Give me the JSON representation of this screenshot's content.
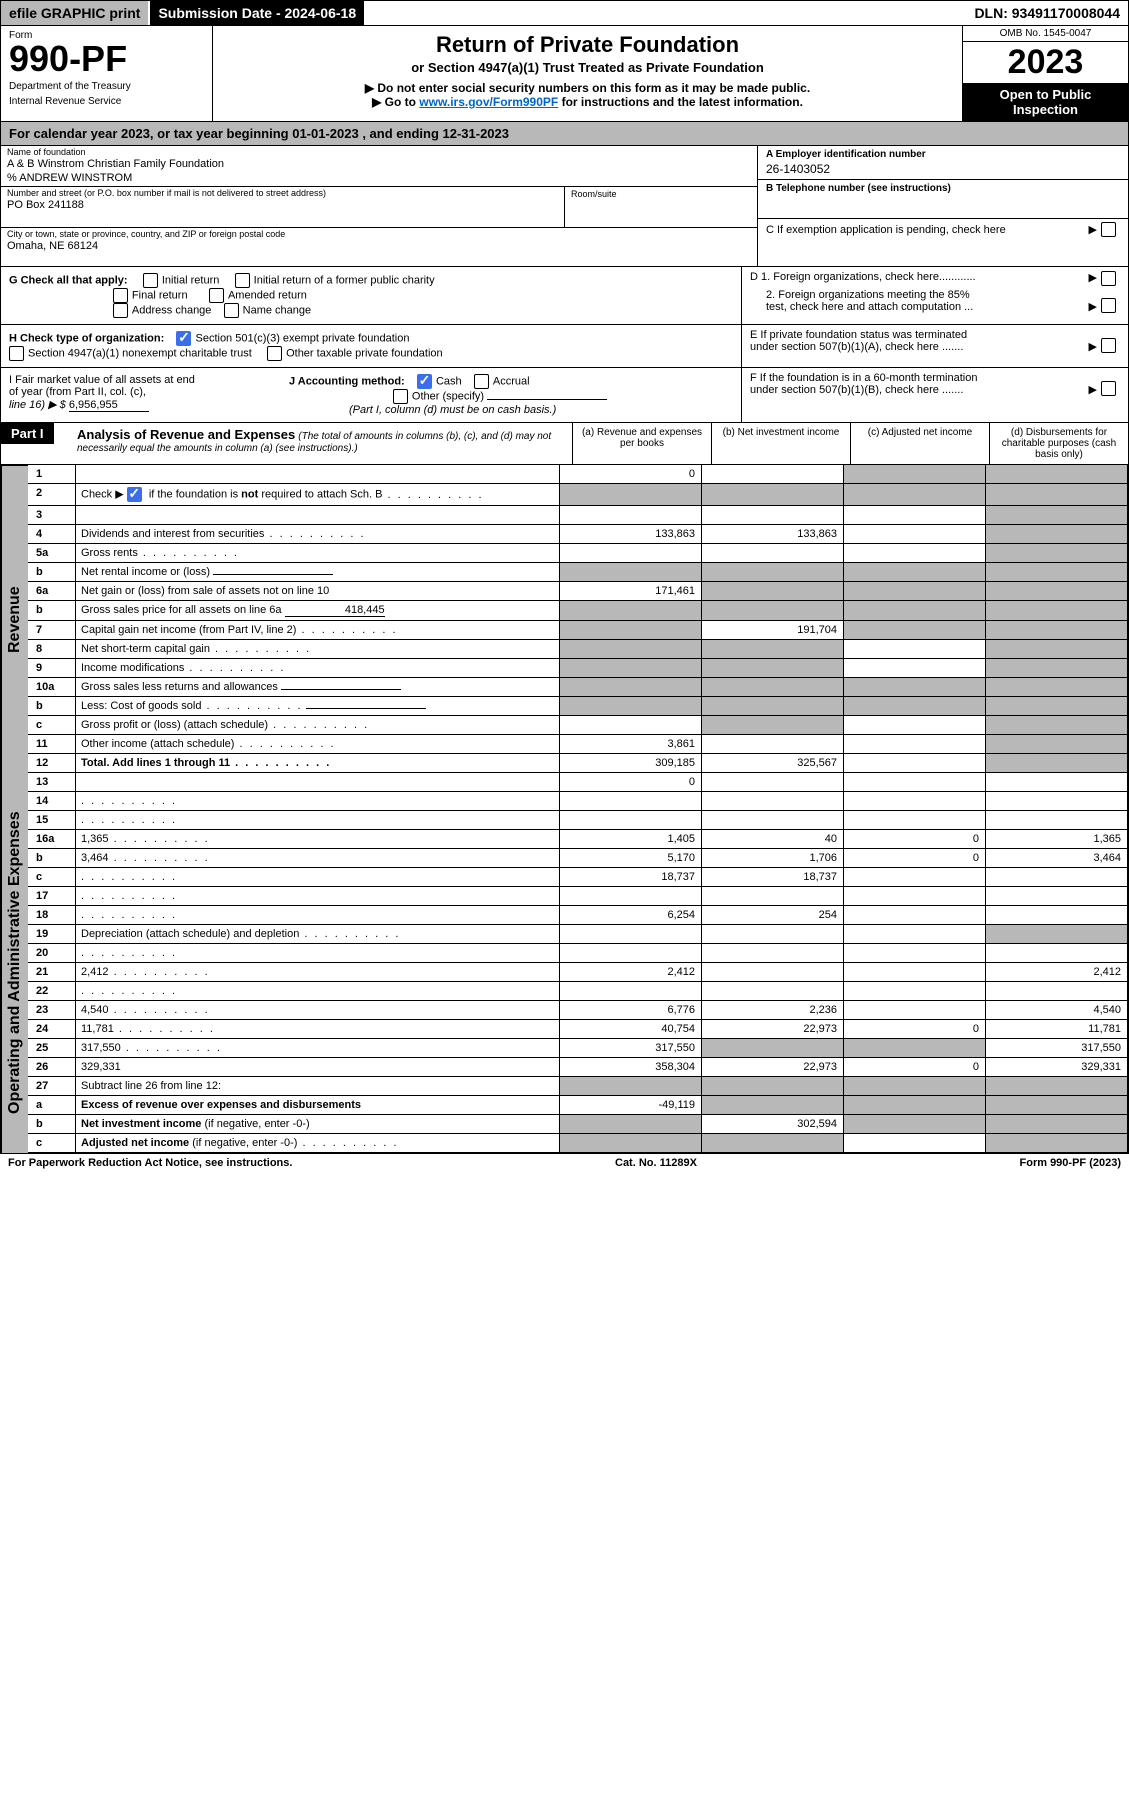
{
  "topbar": {
    "efile": "efile GRAPHIC print",
    "submission": "Submission Date - 2024-06-18",
    "dln": "DLN: 93491170008044"
  },
  "header": {
    "form_label": "Form",
    "form_number": "990-PF",
    "dept1": "Department of the Treasury",
    "dept2": "Internal Revenue Service",
    "title": "Return of Private Foundation",
    "subtitle": "or Section 4947(a)(1) Trust Treated as Private Foundation",
    "note1": "▶ Do not enter social security numbers on this form as it may be made public.",
    "note2_pre": "▶ Go to ",
    "note2_link": "www.irs.gov/Form990PF",
    "note2_post": " for instructions and the latest information.",
    "omb": "OMB No. 1545-0047",
    "year": "2023",
    "open1": "Open to Public",
    "open2": "Inspection"
  },
  "calendar": "For calendar year 2023, or tax year beginning 01-01-2023                        , and ending 12-31-2023",
  "info": {
    "name_label": "Name of foundation",
    "name": "A & B Winstrom Christian Family Foundation",
    "care_of": "% ANDREW WINSTROM",
    "addr_label": "Number and street (or P.O. box number if mail is not delivered to street address)",
    "addr": "PO Box 241188",
    "room_label": "Room/suite",
    "city_label": "City or town, state or province, country, and ZIP or foreign postal code",
    "city": "Omaha, NE  68124",
    "a_label": "A Employer identification number",
    "a_val": "26-1403052",
    "b_label": "B Telephone number (see instructions)",
    "c_label": "C If exemption application is pending, check here",
    "d1": "D 1. Foreign organizations, check here............",
    "d2a": "2. Foreign organizations meeting the 85%",
    "d2b": "test, check here and attach computation ...",
    "e1": "E  If private foundation status was terminated",
    "e2": "under section 507(b)(1)(A), check here .......",
    "f1": "F  If the foundation is in a 60-month termination",
    "f2": "under section 507(b)(1)(B), check here .......",
    "g_label": "G Check all that apply:",
    "g_initial": "Initial return",
    "g_initial_former": "Initial return of a former public charity",
    "g_final": "Final return",
    "g_amended": "Amended return",
    "g_address": "Address change",
    "g_name": "Name change",
    "h_label": "H Check type of organization:",
    "h_501c3": "Section 501(c)(3) exempt private foundation",
    "h_4947": "Section 4947(a)(1) nonexempt charitable trust",
    "h_other": "Other taxable private foundation",
    "i_label": "I Fair market value of all assets at end",
    "i_sub": "of year (from Part II, col. (c),",
    "i_line": "line 16) ▶ $",
    "i_val": "6,956,955",
    "j_label": "J Accounting method:",
    "j_cash": "Cash",
    "j_accrual": "Accrual",
    "j_other": "Other (specify)",
    "j_note": "(Part I, column (d) must be on cash basis.)"
  },
  "part1": {
    "label": "Part I",
    "title": "Analysis of Revenue and Expenses",
    "title_note": " (The total of amounts in columns (b), (c), and (d) may not necessarily equal the amounts in column (a) (see instructions).)",
    "col_a": "(a)   Revenue and expenses per books",
    "col_b": "(b)   Net investment income",
    "col_c": "(c)   Adjusted net income",
    "col_d": "(d)   Disbursements for charitable purposes (cash basis only)"
  },
  "side": {
    "revenue": "Revenue",
    "expenses": "Operating and Administrative Expenses"
  },
  "rows": [
    {
      "n": "1",
      "d": "",
      "a": "0",
      "b": "",
      "c": "",
      "shade_c": true,
      "shade_d": true
    },
    {
      "n": "2",
      "d": "Check ▶ ☑ if the foundation is <b>not</b> required to attach Sch. B",
      "dots": true,
      "shade_a": true,
      "shade_b": true,
      "shade_c": true,
      "shade_d": true,
      "has_check": true
    },
    {
      "n": "3",
      "d": "",
      "a": "",
      "b": "",
      "c": "",
      "shade_d": true
    },
    {
      "n": "4",
      "d": "Dividends and interest from securities",
      "dots": true,
      "a": "133,863",
      "b": "133,863",
      "c": "",
      "shade_d": true
    },
    {
      "n": "5a",
      "d": "Gross rents",
      "dots": true,
      "a": "",
      "b": "",
      "c": "",
      "shade_d": true
    },
    {
      "n": "b",
      "d": "Net rental income or (loss)",
      "inline_box": true,
      "shade_a": true,
      "shade_b": true,
      "shade_c": true,
      "shade_d": true
    },
    {
      "n": "6a",
      "d": "Net gain or (loss) from sale of assets not on line 10",
      "a": "171,461",
      "shade_b": true,
      "shade_c": true,
      "shade_d": true
    },
    {
      "n": "b",
      "d": "Gross sales price for all assets on line 6a",
      "inline_val": "418,445",
      "shade_a": true,
      "shade_b": true,
      "shade_c": true,
      "shade_d": true
    },
    {
      "n": "7",
      "d": "Capital gain net income (from Part IV, line 2)",
      "dots": true,
      "shade_a": true,
      "b": "191,704",
      "shade_c": true,
      "shade_d": true
    },
    {
      "n": "8",
      "d": "Net short-term capital gain",
      "dots": true,
      "shade_a": true,
      "shade_b": true,
      "c": "",
      "shade_d": true
    },
    {
      "n": "9",
      "d": "Income modifications",
      "dots": true,
      "shade_a": true,
      "shade_b": true,
      "c": "",
      "shade_d": true
    },
    {
      "n": "10a",
      "d": "Gross sales less returns and allowances",
      "inline_box": true,
      "shade_a": true,
      "shade_b": true,
      "shade_c": true,
      "shade_d": true
    },
    {
      "n": "b",
      "d": "Less: Cost of goods sold",
      "dots": true,
      "inline_box": true,
      "shade_a": true,
      "shade_b": true,
      "shade_c": true,
      "shade_d": true
    },
    {
      "n": "c",
      "d": "Gross profit or (loss) (attach schedule)",
      "dots": true,
      "a": "",
      "shade_b": true,
      "c": "",
      "shade_d": true
    },
    {
      "n": "11",
      "d": "Other income (attach schedule)",
      "dots": true,
      "a": "3,861",
      "b": "",
      "c": "",
      "shade_d": true
    },
    {
      "n": "12",
      "d": "<b>Total.</b> Add lines 1 through 11",
      "dots": true,
      "a": "309,185",
      "b": "325,567",
      "c": "",
      "shade_d": true,
      "bold": true
    }
  ],
  "exp_rows": [
    {
      "n": "13",
      "d": "",
      "a": "0",
      "b": "",
      "c": ""
    },
    {
      "n": "14",
      "d": "",
      "dots": true,
      "a": "",
      "b": "",
      "c": ""
    },
    {
      "n": "15",
      "d": "",
      "dots": true,
      "a": "",
      "b": "",
      "c": ""
    },
    {
      "n": "16a",
      "d": "1,365",
      "dots": true,
      "a": "1,405",
      "b": "40",
      "c": "0"
    },
    {
      "n": "b",
      "d": "3,464",
      "dots": true,
      "a": "5,170",
      "b": "1,706",
      "c": "0"
    },
    {
      "n": "c",
      "d": "",
      "dots": true,
      "a": "18,737",
      "b": "18,737",
      "c": ""
    },
    {
      "n": "17",
      "d": "",
      "dots": true,
      "a": "",
      "b": "",
      "c": ""
    },
    {
      "n": "18",
      "d": "",
      "dots": true,
      "a": "6,254",
      "b": "254",
      "c": ""
    },
    {
      "n": "19",
      "d": "Depreciation (attach schedule) and depletion",
      "dots": true,
      "a": "",
      "b": "",
      "c": "",
      "shade_d": true
    },
    {
      "n": "20",
      "d": "",
      "dots": true,
      "a": "",
      "b": "",
      "c": ""
    },
    {
      "n": "21",
      "d": "2,412",
      "dots": true,
      "a": "2,412",
      "b": "",
      "c": ""
    },
    {
      "n": "22",
      "d": "",
      "dots": true,
      "a": "",
      "b": "",
      "c": ""
    },
    {
      "n": "23",
      "d": "4,540",
      "dots": true,
      "a": "6,776",
      "b": "2,236",
      "c": ""
    },
    {
      "n": "24",
      "d": "11,781",
      "dots": true,
      "a": "40,754",
      "b": "22,973",
      "c": "0"
    },
    {
      "n": "25",
      "d": "317,550",
      "dots": true,
      "a": "317,550",
      "shade_b": true,
      "shade_c": true
    },
    {
      "n": "26",
      "d": "329,331",
      "a": "358,304",
      "b": "22,973",
      "c": "0"
    },
    {
      "n": "27",
      "d": "Subtract line 26 from line 12:",
      "shade_a": true,
      "shade_b": true,
      "shade_c": true,
      "shade_d": true
    },
    {
      "n": "a",
      "d": "<b>Excess of revenue over expenses and disbursements</b>",
      "a": "-49,119",
      "shade_b": true,
      "shade_c": true,
      "shade_d": true
    },
    {
      "n": "b",
      "d": "<b>Net investment income</b> (if negative, enter -0-)",
      "shade_a": true,
      "b": "302,594",
      "shade_c": true,
      "shade_d": true
    },
    {
      "n": "c",
      "d": "<b>Adjusted net income</b> (if negative, enter -0-)",
      "dots": true,
      "shade_a": true,
      "shade_b": true,
      "c": "",
      "shade_d": true
    }
  ],
  "footer": {
    "left": "For Paperwork Reduction Act Notice, see instructions.",
    "mid": "Cat. No. 11289X",
    "right": "Form 990-PF (2023)"
  }
}
